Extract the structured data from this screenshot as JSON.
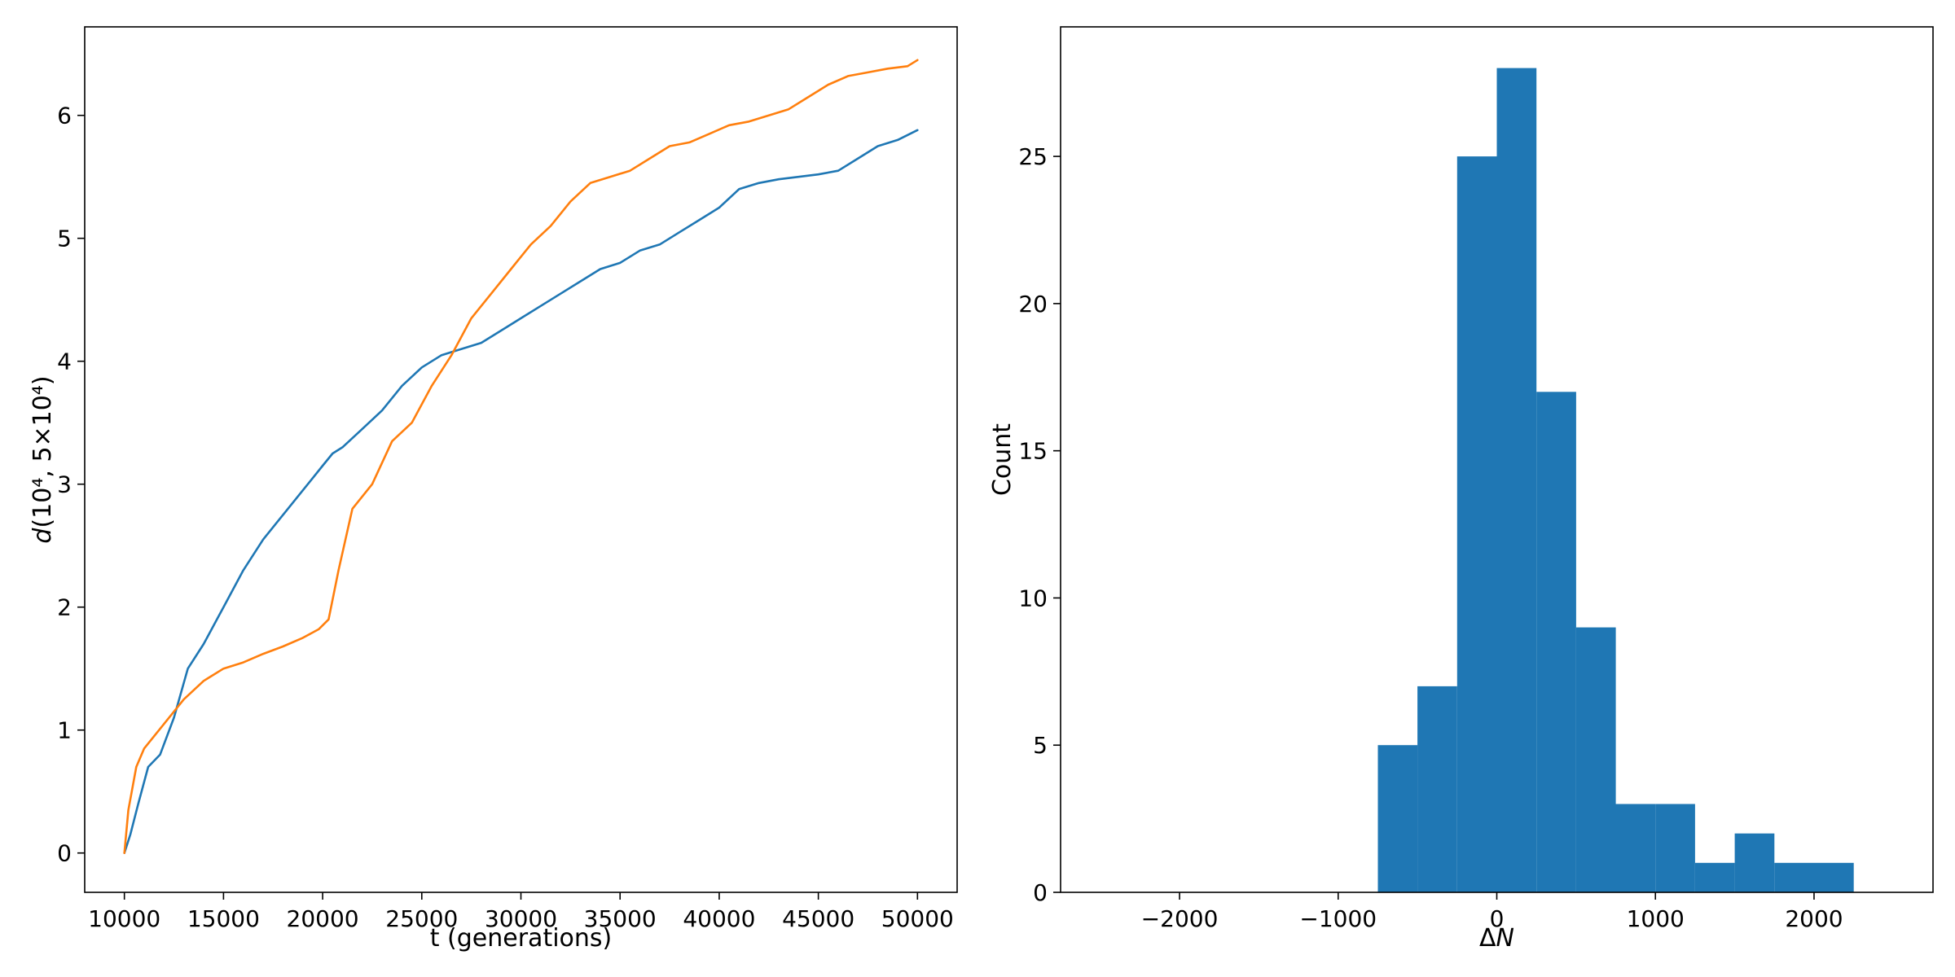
{
  "chart_data": [
    {
      "type": "line",
      "xlabel": "t (generations)",
      "ylabel": "d(10⁴, 5×10⁴)",
      "ylabel_parts": {
        "italic": "d",
        "rest": "(10⁴, 5×10⁴)"
      },
      "xlim": [
        8000,
        52000
      ],
      "ylim": [
        -0.32,
        6.72
      ],
      "xticks": [
        10000,
        15000,
        20000,
        25000,
        30000,
        35000,
        40000,
        45000,
        50000
      ],
      "xtick_labels": [
        "10000",
        "15000",
        "20000",
        "25000",
        "30000",
        "35000",
        "40000",
        "45000",
        "50000"
      ],
      "yticks": [
        0,
        1,
        2,
        3,
        4,
        5,
        6
      ],
      "ytick_labels": [
        "0",
        "1",
        "2",
        "3",
        "4",
        "5",
        "6"
      ],
      "grid": false,
      "series": [
        {
          "color": "#1f77b4",
          "x": [
            10000,
            10300,
            10700,
            11200,
            11800,
            12500,
            13200,
            14000,
            15000,
            16000,
            17000,
            18000,
            19000,
            20000,
            20500,
            21000,
            22000,
            23000,
            24000,
            25000,
            26000,
            27000,
            28000,
            29000,
            30000,
            31000,
            32000,
            33000,
            34000,
            35000,
            36000,
            37000,
            38000,
            39000,
            40000,
            41000,
            42000,
            43000,
            44000,
            45000,
            46000,
            47000,
            48000,
            49000,
            50000
          ],
          "y": [
            0,
            0.15,
            0.4,
            0.7,
            0.8,
            1.1,
            1.5,
            1.7,
            2.0,
            2.3,
            2.55,
            2.75,
            2.95,
            3.15,
            3.25,
            3.3,
            3.45,
            3.6,
            3.8,
            3.95,
            4.05,
            4.1,
            4.15,
            4.25,
            4.35,
            4.45,
            4.55,
            4.65,
            4.75,
            4.8,
            4.9,
            4.95,
            5.05,
            5.15,
            5.25,
            5.4,
            5.45,
            5.48,
            5.5,
            5.52,
            5.55,
            5.65,
            5.75,
            5.8,
            5.88
          ]
        },
        {
          "color": "#ff7f0e",
          "x": [
            10000,
            10200,
            10600,
            11000,
            11500,
            12000,
            13000,
            14000,
            15000,
            16000,
            17000,
            18000,
            19000,
            19800,
            20300,
            20800,
            21500,
            22500,
            23500,
            24500,
            25500,
            26500,
            27500,
            28500,
            29500,
            30500,
            31500,
            32500,
            33500,
            34500,
            35500,
            36500,
            37500,
            38500,
            39500,
            40500,
            41500,
            42500,
            43500,
            44500,
            45500,
            46500,
            47500,
            48500,
            49500,
            50000
          ],
          "y": [
            0,
            0.35,
            0.7,
            0.85,
            0.95,
            1.05,
            1.25,
            1.4,
            1.5,
            1.55,
            1.62,
            1.68,
            1.75,
            1.82,
            1.9,
            2.3,
            2.8,
            3.0,
            3.35,
            3.5,
            3.8,
            4.05,
            4.35,
            4.55,
            4.75,
            4.95,
            5.1,
            5.3,
            5.45,
            5.5,
            5.55,
            5.65,
            5.75,
            5.78,
            5.85,
            5.92,
            5.95,
            6.0,
            6.05,
            6.15,
            6.25,
            6.32,
            6.35,
            6.38,
            6.4,
            6.45
          ]
        }
      ]
    },
    {
      "type": "bar",
      "subtype": "histogram",
      "xlabel": "ΔN",
      "xlabel_parts": {
        "plain": "Δ",
        "italic": "N"
      },
      "ylabel": "Count",
      "xlim": [
        -2750,
        2750
      ],
      "ylim": [
        0,
        29.4
      ],
      "xticks": [
        -2000,
        -1000,
        0,
        1000,
        2000
      ],
      "xtick_labels": [
        "−2000",
        "−1000",
        "0",
        "1000",
        "2000"
      ],
      "yticks": [
        0,
        5,
        10,
        15,
        20,
        25
      ],
      "ytick_labels": [
        "0",
        "5",
        "10",
        "15",
        "20",
        "25"
      ],
      "grid": false,
      "color": "#1f77b4",
      "bin_edges": [
        -750,
        -500,
        -250,
        0,
        250,
        500,
        750,
        1000,
        1250,
        1500,
        1750,
        2000,
        2250
      ],
      "counts": [
        5,
        7,
        25,
        28,
        17,
        9,
        3,
        3,
        1,
        2,
        1,
        1
      ]
    }
  ]
}
